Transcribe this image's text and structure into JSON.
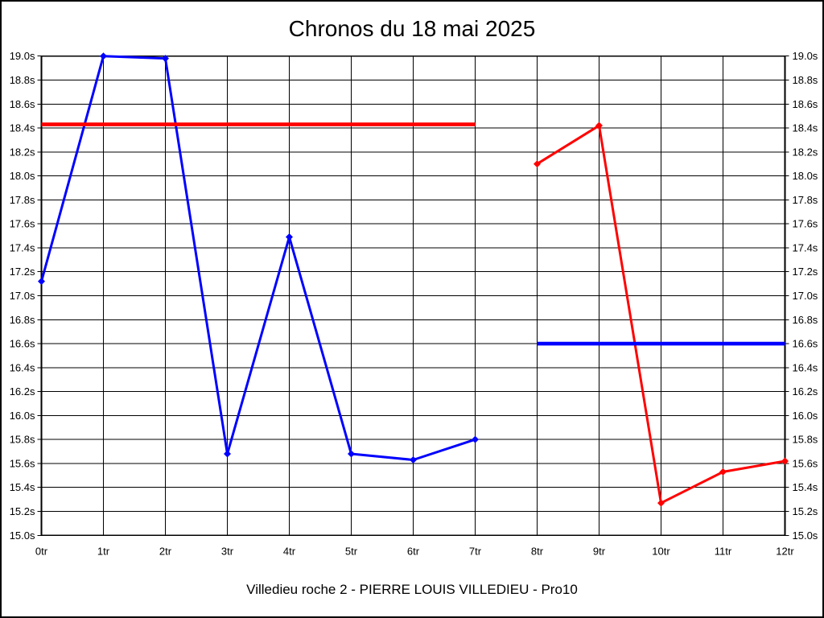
{
  "page": {
    "title": "Chronos du 18 mai 2025",
    "subtitle": "Villedieu roche 2 - PIERRE LOUIS VILLEDIEU - Pro10"
  },
  "chart_data": {
    "type": "line",
    "title": "Chronos du 18 mai 2025",
    "subtitle": "Villedieu roche 2 - PIERRE LOUIS VILLEDIEU - Pro10",
    "x_unit": "tr",
    "y_unit": "s",
    "xlim": [
      0,
      12
    ],
    "ylim": [
      15.0,
      19.0
    ],
    "y_tick_step": 0.2,
    "grid": true,
    "x_tick_labels": [
      "0tr",
      "1tr",
      "2tr",
      "3tr",
      "4tr",
      "5tr",
      "6tr",
      "7tr",
      "8tr",
      "9tr",
      "10tr",
      "11tr",
      "12tr"
    ],
    "y_tick_labels": [
      "19.0s",
      "18.8s",
      "18.6s",
      "18.4s",
      "18.2s",
      "18.0s",
      "17.8s",
      "17.6s",
      "17.4s",
      "17.2s",
      "17.0s",
      "16.8s",
      "16.6s",
      "16.4s",
      "16.2s",
      "16.0s",
      "15.8s",
      "15.6s",
      "15.4s",
      "15.2s",
      "15.0s"
    ],
    "series": [
      {
        "name": "blue-series",
        "color": "#0000ff",
        "x": [
          0,
          1,
          2,
          3,
          4,
          5,
          6,
          7
        ],
        "y": [
          17.12,
          19.0,
          18.98,
          15.68,
          17.49,
          15.68,
          15.63,
          15.8
        ]
      },
      {
        "name": "red-series",
        "color": "#ff0000",
        "x": [
          8,
          9,
          10,
          11,
          12
        ],
        "y": [
          18.1,
          18.42,
          15.27,
          15.53,
          15.62
        ]
      }
    ],
    "reference_lines": [
      {
        "name": "red-reference-line",
        "color": "#ff0000",
        "y": 18.43,
        "x_start": 0,
        "x_end": 7
      },
      {
        "name": "blue-reference-line",
        "color": "#0000ff",
        "y": 16.6,
        "x_start": 8,
        "x_end": 12
      }
    ]
  }
}
